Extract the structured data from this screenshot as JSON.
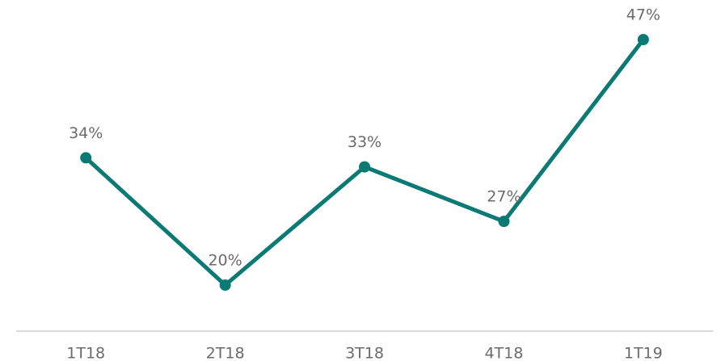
{
  "chart_data": {
    "type": "line",
    "categories": [
      "1T18",
      "2T18",
      "3T18",
      "4T18",
      "1T19"
    ],
    "values": [
      34,
      20,
      33,
      27,
      47
    ],
    "value_labels": [
      "34%",
      "20%",
      "33%",
      "27%",
      "47%"
    ],
    "color": "#0b7a75"
  }
}
